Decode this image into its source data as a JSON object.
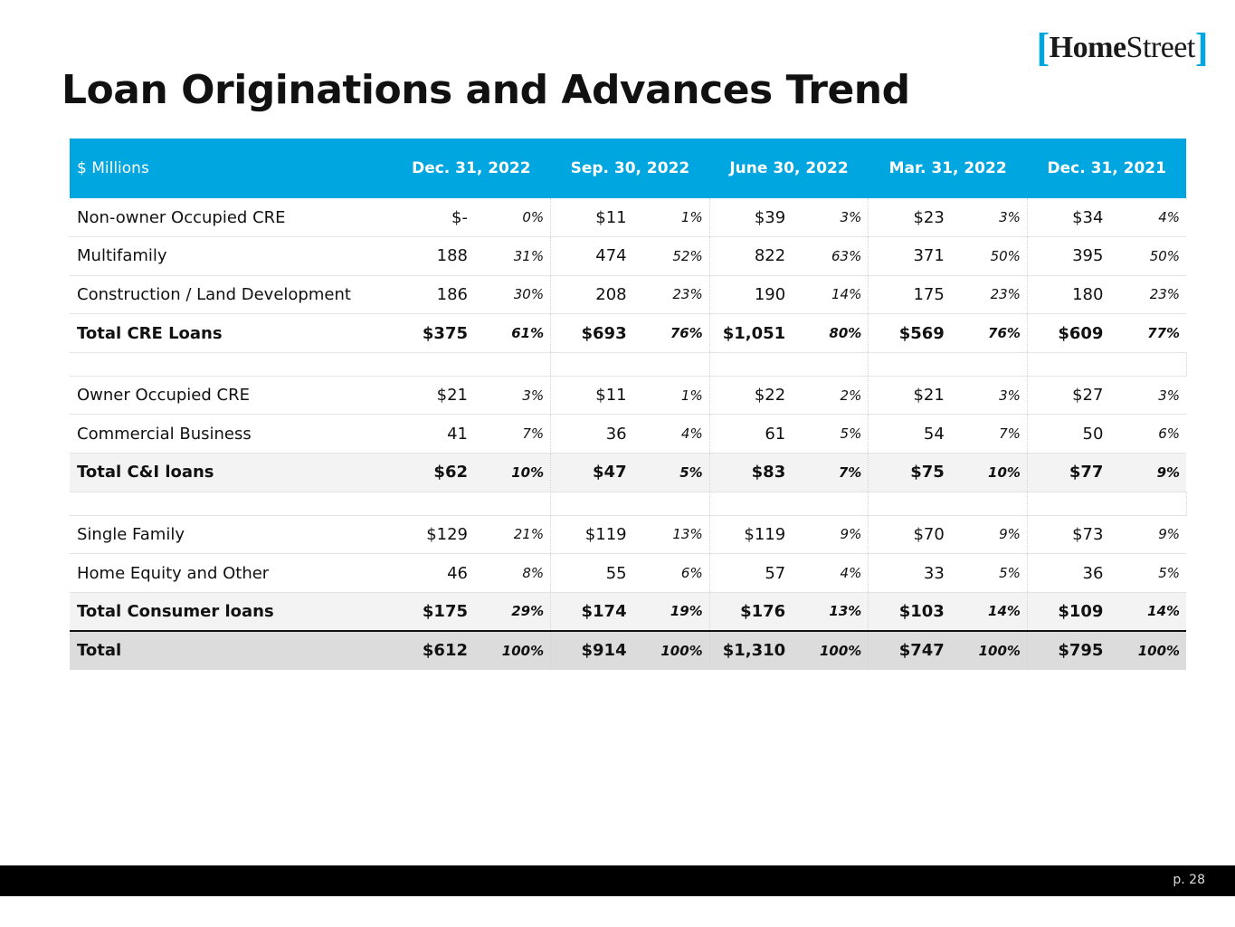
{
  "logo": {
    "open_bracket": "[",
    "bold_part": "Home",
    "light_part": "Street",
    "close_bracket": "]"
  },
  "title": "Loan Originations and Advances Trend",
  "table": {
    "header_label": "$ Millions",
    "periods": [
      "Dec. 31, 2022",
      "Sep. 30, 2022",
      "June 30, 2022",
      "Mar. 31, 2022",
      "Dec. 31, 2021"
    ],
    "rows": [
      {
        "label": "Non-owner Occupied CRE",
        "style": "normal",
        "cells": [
          [
            "$-",
            "0%"
          ],
          [
            "$11",
            "1%"
          ],
          [
            "$39",
            "3%"
          ],
          [
            "$23",
            "3%"
          ],
          [
            "$34",
            "4%"
          ]
        ]
      },
      {
        "label": "Multifamily",
        "style": "normal",
        "cells": [
          [
            "188",
            "31%"
          ],
          [
            "474",
            "52%"
          ],
          [
            "822",
            "63%"
          ],
          [
            "371",
            "50%"
          ],
          [
            "395",
            "50%"
          ]
        ]
      },
      {
        "label": "Construction / Land Development",
        "style": "normal",
        "cells": [
          [
            "186",
            "30%"
          ],
          [
            "208",
            "23%"
          ],
          [
            "190",
            "14%"
          ],
          [
            "175",
            "23%"
          ],
          [
            "180",
            "23%"
          ]
        ]
      },
      {
        "label": "Total CRE Loans",
        "style": "subtotal-plain",
        "cells": [
          [
            "$375",
            "61%"
          ],
          [
            "$693",
            "76%"
          ],
          [
            "$1,051",
            "80%"
          ],
          [
            "$569",
            "76%"
          ],
          [
            "$609",
            "77%"
          ]
        ]
      },
      {
        "label": "Owner Occupied CRE",
        "style": "normal",
        "cells": [
          [
            "$21",
            "3%"
          ],
          [
            "$11",
            "1%"
          ],
          [
            "$22",
            "2%"
          ],
          [
            "$21",
            "3%"
          ],
          [
            "$27",
            "3%"
          ]
        ]
      },
      {
        "label": "Commercial Business",
        "style": "normal",
        "cells": [
          [
            "41",
            "7%"
          ],
          [
            "36",
            "4%"
          ],
          [
            "61",
            "5%"
          ],
          [
            "54",
            "7%"
          ],
          [
            "50",
            "6%"
          ]
        ]
      },
      {
        "label": "Total C&I loans",
        "style": "subtotal",
        "cells": [
          [
            "$62",
            "10%"
          ],
          [
            "$47",
            "5%"
          ],
          [
            "$83",
            "7%"
          ],
          [
            "$75",
            "10%"
          ],
          [
            "$77",
            "9%"
          ]
        ]
      },
      {
        "label": "Single Family",
        "style": "normal",
        "cells": [
          [
            "$129",
            "21%"
          ],
          [
            "$119",
            "13%"
          ],
          [
            "$119",
            "9%"
          ],
          [
            "$70",
            "9%"
          ],
          [
            "$73",
            "9%"
          ]
        ]
      },
      {
        "label": "Home Equity and Other",
        "style": "normal",
        "cells": [
          [
            "46",
            "8%"
          ],
          [
            "55",
            "6%"
          ],
          [
            "57",
            "4%"
          ],
          [
            "33",
            "5%"
          ],
          [
            "36",
            "5%"
          ]
        ]
      },
      {
        "label": "Total Consumer loans",
        "style": "subtotal",
        "cells": [
          [
            "$175",
            "29%"
          ],
          [
            "$174",
            "19%"
          ],
          [
            "$176",
            "13%"
          ],
          [
            "$103",
            "14%"
          ],
          [
            "$109",
            "14%"
          ]
        ]
      },
      {
        "label": "Total",
        "style": "grand",
        "cells": [
          [
            "$612",
            "100%"
          ],
          [
            "$914",
            "100%"
          ],
          [
            "$1,310",
            "100%"
          ],
          [
            "$747",
            "100%"
          ],
          [
            "$795",
            "100%"
          ]
        ]
      }
    ]
  },
  "footer": {
    "page_number": "p. 28"
  },
  "colors": {
    "accent": "#00a6df",
    "footer_bg": "#000000",
    "subtotal_bg": "#f3f3f3",
    "total_bg": "#dcdcdc"
  }
}
